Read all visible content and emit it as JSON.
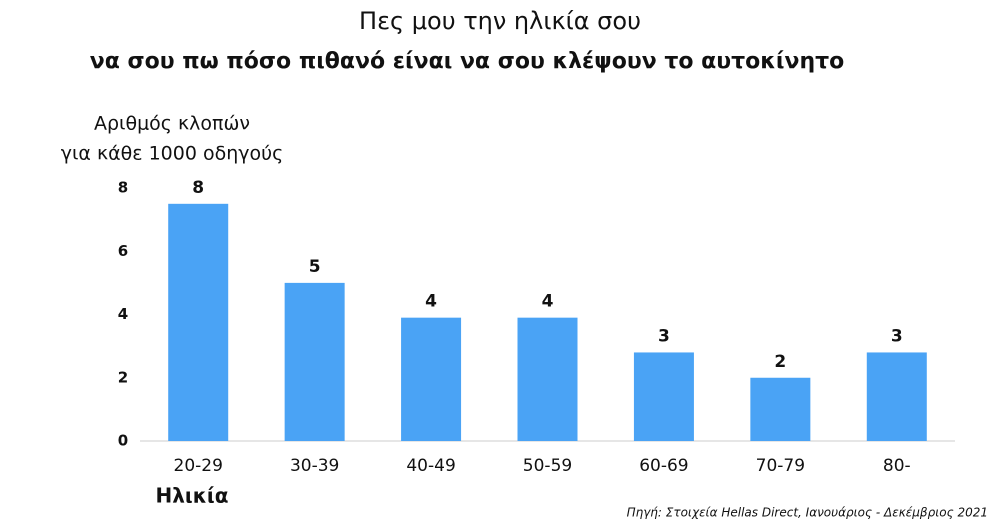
{
  "chart_data": {
    "type": "bar",
    "title": "Πες μου την ηλικία σου",
    "subtitle": "να σου πω πόσο πιθανό είναι να σου κλέψουν το αυτοκίνητο",
    "ylabel": [
      "Αριθμός κλοπών",
      "για κάθε 1000 οδηγούς"
    ],
    "xlabel": "Ηλικία",
    "source": "Πηγή: Στοιχεία Hellas Direct, Ιανουάριος - Δεκέμβριος 2021",
    "categories": [
      "20-29",
      "30-39",
      "40-49",
      "50-59",
      "60-69",
      "70-79",
      "80-"
    ],
    "values": [
      7.5,
      5.0,
      3.9,
      3.9,
      2.8,
      2.0,
      2.8
    ],
    "value_labels": [
      "8",
      "5",
      "4",
      "4",
      "3",
      "2",
      "3"
    ],
    "color": "#4aa3f5",
    "ylim": [
      0,
      8
    ],
    "yticks": [
      0,
      2,
      4,
      6,
      8
    ],
    "grid": false
  }
}
